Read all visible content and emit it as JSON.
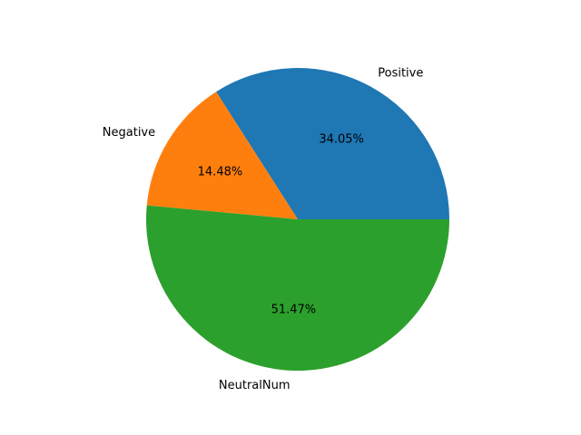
{
  "chart_data": {
    "type": "pie",
    "title": "",
    "start_angle_deg": 0,
    "direction": "counterclockwise",
    "slices": [
      {
        "label": "Positive",
        "value": 34.05,
        "pct_label": "34.05%",
        "color": "#1f77b4"
      },
      {
        "label": "Negative",
        "value": 14.48,
        "pct_label": "14.48%",
        "color": "#ff7f0e"
      },
      {
        "label": "NeutralNum",
        "value": 51.47,
        "pct_label": "51.47%",
        "color": "#2ca02c"
      }
    ]
  }
}
